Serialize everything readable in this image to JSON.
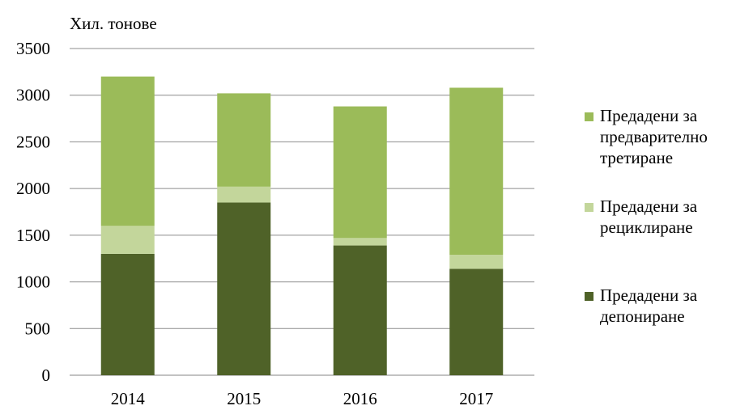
{
  "chart_data": {
    "type": "bar",
    "stacked": true,
    "title": "",
    "ylabel": "Хил. тонове",
    "xlabel": "",
    "ylim": [
      0,
      3500
    ],
    "yticks": [
      0,
      500,
      1000,
      1500,
      2000,
      2500,
      3000,
      3500
    ],
    "categories": [
      "2014",
      "2015",
      "2016",
      "2017"
    ],
    "grid": true,
    "legend_position": "right",
    "series": [
      {
        "name": "Предадени за депониране",
        "color": "#4f6228",
        "values": [
          1300,
          1850,
          1390,
          1140
        ]
      },
      {
        "name": "Предадени за рециклиране",
        "color": "#c3d69b",
        "values": [
          300,
          170,
          80,
          150
        ]
      },
      {
        "name": "Предадени за предварително третиране",
        "color": "#9bbb59",
        "values": [
          1600,
          1000,
          1410,
          1790
        ]
      }
    ]
  },
  "legend": {
    "items": [
      {
        "lines": [
          "Предадени за",
          "предварително",
          "третиране"
        ],
        "color": "#9bbb59"
      },
      {
        "lines": [
          "Предадени за",
          "рециклиране"
        ],
        "color": "#c3d69b"
      },
      {
        "lines": [
          "Предадени за",
          "депониране"
        ],
        "color": "#4f6228"
      }
    ]
  }
}
